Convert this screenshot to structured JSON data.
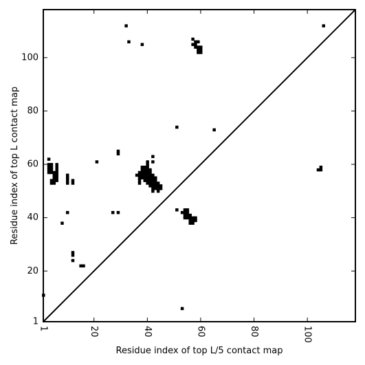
{
  "chart_data": {
    "type": "scatter",
    "marker": "square",
    "title": "",
    "xlabel": "Residue index of top L/5 contact map",
    "ylabel": "Residue index of top L contact map",
    "xlim": [
      1,
      118
    ],
    "ylim": [
      1,
      118
    ],
    "xticks": [
      1,
      20,
      40,
      60,
      80,
      100
    ],
    "yticks": [
      1,
      20,
      40,
      60,
      80,
      100
    ],
    "x_tick_rotation": -90,
    "diagonal": true,
    "grid": false,
    "point_color": "#000000",
    "points": [
      [
        32,
        112
      ],
      [
        33,
        106
      ],
      [
        38,
        105
      ],
      [
        57,
        107
      ],
      [
        57,
        105
      ],
      [
        58,
        105
      ],
      [
        58,
        106
      ],
      [
        59,
        106
      ],
      [
        58,
        104
      ],
      [
        59,
        104
      ],
      [
        59,
        103
      ],
      [
        60,
        103
      ],
      [
        60,
        102
      ],
      [
        59,
        102
      ],
      [
        60,
        104
      ],
      [
        106,
        112
      ],
      [
        51,
        74
      ],
      [
        65,
        73
      ],
      [
        3,
        62
      ],
      [
        42,
        63
      ],
      [
        21,
        61
      ],
      [
        29,
        65
      ],
      [
        29,
        64
      ],
      [
        40,
        61
      ],
      [
        42,
        61
      ],
      [
        3,
        60
      ],
      [
        4,
        60
      ],
      [
        3,
        59
      ],
      [
        4,
        59
      ],
      [
        3,
        58
      ],
      [
        4,
        58
      ],
      [
        3,
        57
      ],
      [
        4,
        57
      ],
      [
        6,
        60
      ],
      [
        6,
        59
      ],
      [
        6,
        58
      ],
      [
        6,
        57
      ],
      [
        5,
        57
      ],
      [
        6,
        56
      ],
      [
        5,
        56
      ],
      [
        6,
        55
      ],
      [
        5,
        55
      ],
      [
        6,
        54
      ],
      [
        5,
        54
      ],
      [
        4,
        54
      ],
      [
        4,
        53
      ],
      [
        5,
        53
      ],
      [
        10,
        56
      ],
      [
        10,
        55
      ],
      [
        10,
        54
      ],
      [
        10,
        53
      ],
      [
        12,
        54
      ],
      [
        12,
        53
      ],
      [
        104,
        58
      ],
      [
        105,
        58
      ],
      [
        105,
        59
      ],
      [
        36,
        56
      ],
      [
        37,
        56
      ],
      [
        37,
        57
      ],
      [
        37,
        55
      ],
      [
        37,
        54
      ],
      [
        37,
        53
      ],
      [
        38,
        55
      ],
      [
        38,
        56
      ],
      [
        38,
        57
      ],
      [
        38,
        58
      ],
      [
        38,
        59
      ],
      [
        39,
        54
      ],
      [
        39,
        55
      ],
      [
        39,
        56
      ],
      [
        39,
        57
      ],
      [
        39,
        58
      ],
      [
        39,
        59
      ],
      [
        40,
        53
      ],
      [
        40,
        54
      ],
      [
        40,
        55
      ],
      [
        40,
        56
      ],
      [
        40,
        57
      ],
      [
        40,
        58
      ],
      [
        40,
        59
      ],
      [
        40,
        60
      ],
      [
        41,
        52
      ],
      [
        41,
        53
      ],
      [
        41,
        54
      ],
      [
        41,
        55
      ],
      [
        41,
        56
      ],
      [
        41,
        57
      ],
      [
        41,
        58
      ],
      [
        42,
        51
      ],
      [
        42,
        52
      ],
      [
        42,
        53
      ],
      [
        42,
        54
      ],
      [
        42,
        55
      ],
      [
        42,
        56
      ],
      [
        42,
        50
      ],
      [
        43,
        51
      ],
      [
        43,
        52
      ],
      [
        43,
        53
      ],
      [
        43,
        54
      ],
      [
        43,
        55
      ],
      [
        44,
        50
      ],
      [
        44,
        51
      ],
      [
        44,
        52
      ],
      [
        44,
        53
      ],
      [
        45,
        51
      ],
      [
        45,
        52
      ],
      [
        27,
        42
      ],
      [
        29,
        42
      ],
      [
        10,
        42
      ],
      [
        8,
        38
      ],
      [
        51,
        43
      ],
      [
        53,
        42
      ],
      [
        54,
        42
      ],
      [
        54,
        43
      ],
      [
        54,
        41
      ],
      [
        54,
        40
      ],
      [
        55,
        40
      ],
      [
        55,
        41
      ],
      [
        55,
        42
      ],
      [
        55,
        43
      ],
      [
        56,
        38
      ],
      [
        56,
        39
      ],
      [
        56,
        40
      ],
      [
        56,
        41
      ],
      [
        57,
        38
      ],
      [
        57,
        39
      ],
      [
        57,
        40
      ],
      [
        58,
        39
      ],
      [
        58,
        40
      ],
      [
        12,
        27
      ],
      [
        12,
        26
      ],
      [
        12,
        24
      ],
      [
        15,
        22
      ],
      [
        16,
        22
      ],
      [
        1,
        11
      ],
      [
        53,
        6
      ]
    ]
  }
}
